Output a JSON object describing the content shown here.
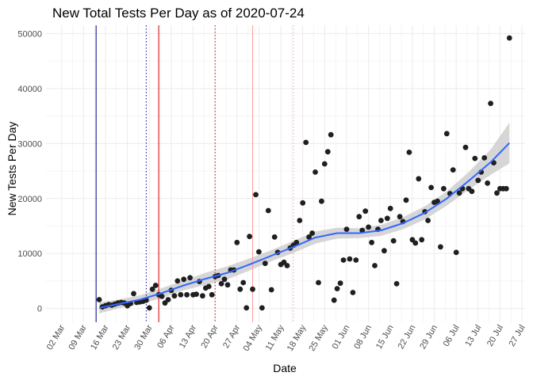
{
  "chart_data": {
    "type": "scatter",
    "title": "New Total Tests Per Day as of 2020-07-24",
    "xlabel": "Date",
    "ylabel": "New Tests Per Day",
    "xlim": [
      "2020-02-26",
      "2020-07-28"
    ],
    "ylim": [
      -2500,
      51500
    ],
    "x_tick_labels": [
      "02 Mar",
      "09 Mar",
      "16 Mar",
      "23 Mar",
      "30 Mar",
      "06 Apr",
      "13 Apr",
      "20 Apr",
      "27 Apr",
      "04 May",
      "11 May",
      "18 May",
      "25 May",
      "01 Jun",
      "08 Jun",
      "15 Jun",
      "22 Jun",
      "29 Jun",
      "06 Jul",
      "13 Jul",
      "20 Jul",
      "27 Jul"
    ],
    "x_ticks": [
      "2020-03-02",
      "2020-03-09",
      "2020-03-16",
      "2020-03-23",
      "2020-03-30",
      "2020-04-06",
      "2020-04-13",
      "2020-04-20",
      "2020-04-27",
      "2020-05-04",
      "2020-05-11",
      "2020-05-18",
      "2020-05-25",
      "2020-06-01",
      "2020-06-08",
      "2020-06-15",
      "2020-06-22",
      "2020-06-29",
      "2020-07-06",
      "2020-07-13",
      "2020-07-20",
      "2020-07-27"
    ],
    "y_ticks": [
      0,
      10000,
      20000,
      30000,
      40000,
      50000
    ],
    "y_tick_labels": [
      "0",
      "10000",
      "20000",
      "30000",
      "40000",
      "50000"
    ],
    "grid": true,
    "colors": {
      "points": "#1f1f1f",
      "smooth": "#3366ff",
      "band": "#c8c8c8",
      "grid": "#ebebeb"
    },
    "vlines": [
      {
        "date": "2020-03-13",
        "color": "#000080",
        "style": "solid"
      },
      {
        "date": "2020-03-29",
        "color": "#000080",
        "style": "dotted"
      },
      {
        "date": "2020-04-02",
        "color": "#cc0000",
        "style": "solid"
      },
      {
        "date": "2020-04-20",
        "color": "#cc0000",
        "style": "dotted"
      },
      {
        "date": "2020-05-02",
        "color": "#ff9999",
        "style": "solid"
      },
      {
        "date": "2020-05-15",
        "color": "#ff9999",
        "style": "dotted"
      }
    ],
    "series": [
      {
        "points": [
          [
            "2020-03-14",
            1600
          ],
          [
            "2020-03-15",
            300
          ],
          [
            "2020-03-16",
            500
          ],
          [
            "2020-03-17",
            700
          ],
          [
            "2020-03-18",
            600
          ],
          [
            "2020-03-19",
            800
          ],
          [
            "2020-03-20",
            1000
          ],
          [
            "2020-03-21",
            1100
          ],
          [
            "2020-03-22",
            1000
          ],
          [
            "2020-03-23",
            500
          ],
          [
            "2020-03-24",
            900
          ],
          [
            "2020-03-25",
            2700
          ],
          [
            "2020-03-26",
            1100
          ],
          [
            "2020-03-27",
            1200
          ],
          [
            "2020-03-28",
            1300
          ],
          [
            "2020-03-29",
            1500
          ],
          [
            "2020-03-30",
            100
          ],
          [
            "2020-03-31",
            3500
          ],
          [
            "2020-04-01",
            4200
          ],
          [
            "2020-04-02",
            2500
          ],
          [
            "2020-04-03",
            2200
          ],
          [
            "2020-04-04",
            1000
          ],
          [
            "2020-04-05",
            1600
          ],
          [
            "2020-04-06",
            3300
          ],
          [
            "2020-04-07",
            2300
          ],
          [
            "2020-04-08",
            5000
          ],
          [
            "2020-04-09",
            2500
          ],
          [
            "2020-04-10",
            5300
          ],
          [
            "2020-04-11",
            2500
          ],
          [
            "2020-04-12",
            5600
          ],
          [
            "2020-04-13",
            2500
          ],
          [
            "2020-04-14",
            2600
          ],
          [
            "2020-04-15",
            4900
          ],
          [
            "2020-04-16",
            2300
          ],
          [
            "2020-04-17",
            3700
          ],
          [
            "2020-04-18",
            4000
          ],
          [
            "2020-04-19",
            2500
          ],
          [
            "2020-04-20",
            5800
          ],
          [
            "2020-04-21",
            6000
          ],
          [
            "2020-04-22",
            4500
          ],
          [
            "2020-04-23",
            5300
          ],
          [
            "2020-04-24",
            4300
          ],
          [
            "2020-04-25",
            7000
          ],
          [
            "2020-04-26",
            7000
          ],
          [
            "2020-04-27",
            12000
          ],
          [
            "2020-04-28",
            3500
          ],
          [
            "2020-04-29",
            4700
          ],
          [
            "2020-04-30",
            100
          ],
          [
            "2020-05-01",
            13100
          ],
          [
            "2020-05-02",
            3500
          ],
          [
            "2020-05-03",
            20700
          ],
          [
            "2020-05-04",
            10300
          ],
          [
            "2020-05-05",
            100
          ],
          [
            "2020-05-06",
            8200
          ],
          [
            "2020-05-07",
            17800
          ],
          [
            "2020-05-08",
            3400
          ],
          [
            "2020-05-09",
            13000
          ],
          [
            "2020-05-10",
            10200
          ],
          [
            "2020-05-11",
            8000
          ],
          [
            "2020-05-12",
            8400
          ],
          [
            "2020-05-13",
            7800
          ],
          [
            "2020-05-14",
            11000
          ],
          [
            "2020-05-15",
            11500
          ],
          [
            "2020-05-16",
            12000
          ],
          [
            "2020-05-17",
            16000
          ],
          [
            "2020-05-18",
            19200
          ],
          [
            "2020-05-19",
            30200
          ],
          [
            "2020-05-20",
            13000
          ],
          [
            "2020-05-21",
            13700
          ],
          [
            "2020-05-22",
            24800
          ],
          [
            "2020-05-23",
            4700
          ],
          [
            "2020-05-24",
            19500
          ],
          [
            "2020-05-25",
            26300
          ],
          [
            "2020-05-26",
            28500
          ],
          [
            "2020-05-27",
            31600
          ],
          [
            "2020-05-28",
            1500
          ],
          [
            "2020-05-29",
            3600
          ],
          [
            "2020-05-30",
            4600
          ],
          [
            "2020-05-31",
            8800
          ],
          [
            "2020-06-01",
            14400
          ],
          [
            "2020-06-02",
            9000
          ],
          [
            "2020-06-03",
            2900
          ],
          [
            "2020-06-04",
            8800
          ],
          [
            "2020-06-05",
            16700
          ],
          [
            "2020-06-06",
            14200
          ],
          [
            "2020-06-07",
            17700
          ],
          [
            "2020-06-08",
            14800
          ],
          [
            "2020-06-09",
            12000
          ],
          [
            "2020-06-10",
            7800
          ],
          [
            "2020-06-11",
            14400
          ],
          [
            "2020-06-12",
            16000
          ],
          [
            "2020-06-13",
            10500
          ],
          [
            "2020-06-14",
            16400
          ],
          [
            "2020-06-15",
            18200
          ],
          [
            "2020-06-16",
            12300
          ],
          [
            "2020-06-17",
            4500
          ],
          [
            "2020-06-18",
            16700
          ],
          [
            "2020-06-19",
            15800
          ],
          [
            "2020-06-20",
            19700
          ],
          [
            "2020-06-21",
            28400
          ],
          [
            "2020-06-22",
            12500
          ],
          [
            "2020-06-23",
            11900
          ],
          [
            "2020-06-24",
            23600
          ],
          [
            "2020-06-25",
            12500
          ],
          [
            "2020-06-26",
            17600
          ],
          [
            "2020-06-27",
            16000
          ],
          [
            "2020-06-28",
            22000
          ],
          [
            "2020-06-29",
            19300
          ],
          [
            "2020-06-30",
            19500
          ],
          [
            "2020-07-01",
            11200
          ],
          [
            "2020-07-02",
            21800
          ],
          [
            "2020-07-03",
            31800
          ],
          [
            "2020-07-04",
            20900
          ],
          [
            "2020-07-05",
            25200
          ],
          [
            "2020-07-06",
            10200
          ],
          [
            "2020-07-07",
            21000
          ],
          [
            "2020-07-08",
            21800
          ],
          [
            "2020-07-09",
            29300
          ],
          [
            "2020-07-10",
            21800
          ],
          [
            "2020-07-11",
            21300
          ],
          [
            "2020-07-12",
            27300
          ],
          [
            "2020-07-13",
            23300
          ],
          [
            "2020-07-14",
            24800
          ],
          [
            "2020-07-15",
            27400
          ],
          [
            "2020-07-16",
            22800
          ],
          [
            "2020-07-17",
            37300
          ],
          [
            "2020-07-18",
            26500
          ],
          [
            "2020-07-19",
            21000
          ],
          [
            "2020-07-20",
            21800
          ],
          [
            "2020-07-21",
            21800
          ],
          [
            "2020-07-22",
            21800
          ],
          [
            "2020-07-23",
            49200
          ]
        ]
      },
      {
        "type": "smooth",
        "points": [
          [
            "2020-03-14",
            100
          ],
          [
            "2020-03-20",
            800
          ],
          [
            "2020-03-27",
            1600
          ],
          [
            "2020-04-03",
            2800
          ],
          [
            "2020-04-10",
            4200
          ],
          [
            "2020-04-17",
            5400
          ],
          [
            "2020-04-24",
            6500
          ],
          [
            "2020-05-01",
            8000
          ],
          [
            "2020-05-08",
            9600
          ],
          [
            "2020-05-15",
            11200
          ],
          [
            "2020-05-22",
            12900
          ],
          [
            "2020-05-29",
            13700
          ],
          [
            "2020-06-05",
            13700
          ],
          [
            "2020-06-12",
            14200
          ],
          [
            "2020-06-19",
            15500
          ],
          [
            "2020-06-26",
            17400
          ],
          [
            "2020-07-03",
            20000
          ],
          [
            "2020-07-10",
            23200
          ],
          [
            "2020-07-17",
            26600
          ],
          [
            "2020-07-23",
            30100
          ]
        ],
        "ci_lower": [
          -900,
          0,
          800,
          1900,
          3300,
          4300,
          5300,
          6900,
          8600,
          10100,
          11800,
          12700,
          12800,
          13200,
          14400,
          16200,
          18700,
          21600,
          24300,
          26400
        ],
        "ci_upper": [
          1100,
          1600,
          2400,
          3700,
          5100,
          6500,
          7700,
          9100,
          10600,
          12300,
          14000,
          14700,
          14600,
          15200,
          16600,
          18600,
          21300,
          24800,
          28900,
          33800
        ]
      }
    ]
  }
}
